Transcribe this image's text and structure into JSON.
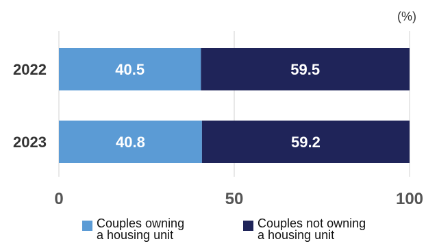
{
  "chart_data": {
    "type": "bar",
    "orientation": "horizontal",
    "stacked": true,
    "categories": [
      "2022",
      "2023"
    ],
    "series": [
      {
        "name": "Couples owning a housing unit",
        "values": [
          40.5,
          40.8
        ],
        "color": "#5b9bd5"
      },
      {
        "name": "Couples not owning a housing unit",
        "values": [
          59.5,
          59.2
        ],
        "color": "#1f2459"
      }
    ],
    "unit": "(%)",
    "xlim": [
      0,
      100
    ],
    "xticks": [
      0,
      50,
      100
    ],
    "grid": true,
    "legend_position": "bottom"
  },
  "legend": {
    "owning": {
      "line1": "Couples owning",
      "line2": "a housing unit"
    },
    "not_owning": {
      "line1": "Couples not owning",
      "line2": "a housing unit"
    }
  }
}
